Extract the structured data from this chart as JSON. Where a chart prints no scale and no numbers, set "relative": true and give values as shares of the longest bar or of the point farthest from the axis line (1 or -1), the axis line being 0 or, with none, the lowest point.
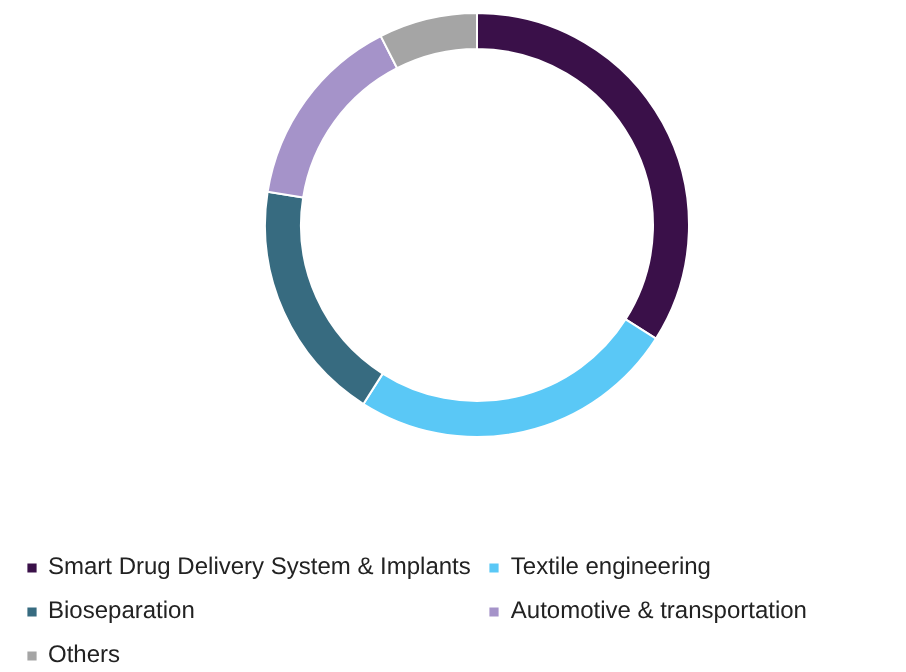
{
  "chart_data": {
    "type": "donut",
    "relative": true,
    "categories": [
      "Smart Drug Delivery System & Implants",
      "Textile engineering",
      "Bioseparation",
      "Automotive & transportation",
      "Others"
    ],
    "values": [
      34,
      25,
      18.5,
      15,
      7.5
    ],
    "colors": [
      "#3a1049",
      "#5ac8f6",
      "#376b80",
      "#a593c9",
      "#a5a5a5"
    ],
    "legend": "bottom"
  }
}
